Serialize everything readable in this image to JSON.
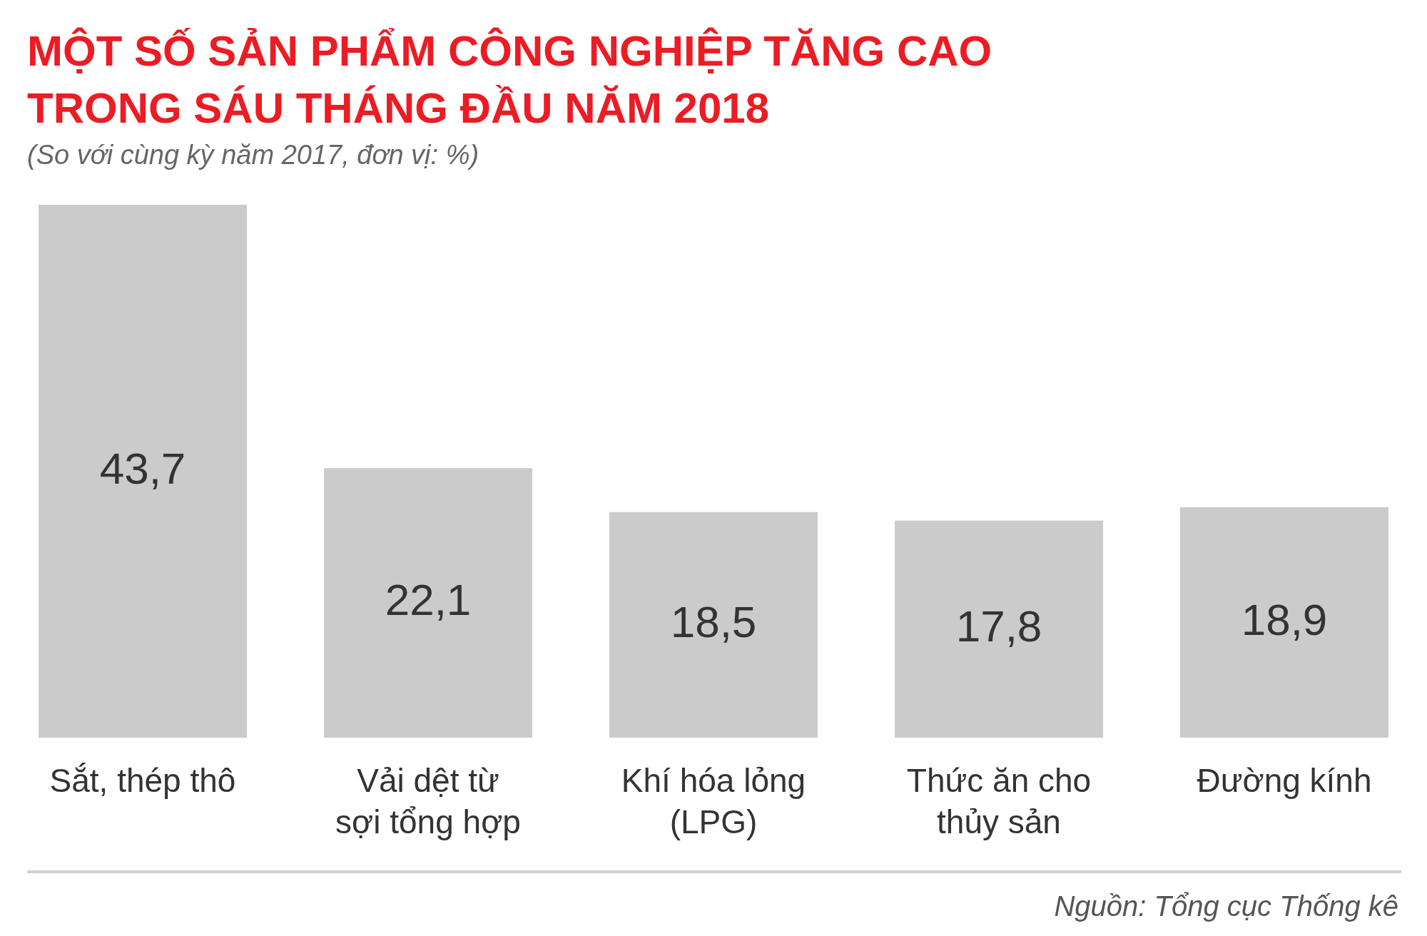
{
  "chart_data": {
    "type": "bar",
    "title": "MỘT SỐ SẢN PHẨM CÔNG NGHIỆP TĂNG CAO TRONG SÁU THÁNG ĐẦU NĂM 2018",
    "subtitle": "(So với cùng kỳ năm 2017, đơn vị: %)",
    "categories": [
      "Sắt, thép thô",
      "Vải dệt từ sợi tổng hợp",
      "Khí hóa lỏng (LPG)",
      "Thức ăn cho thủy sản",
      "Đường kính"
    ],
    "values": [
      43.7,
      22.1,
      18.5,
      17.8,
      18.9
    ],
    "value_labels": [
      "43,7",
      "22,1",
      "18,5",
      "17,8",
      "18,9"
    ],
    "color": "#cccbcc",
    "tick_labels": "x",
    "annotations": [
      "Nguồn: Tổng cục Thống kê"
    ]
  }
}
